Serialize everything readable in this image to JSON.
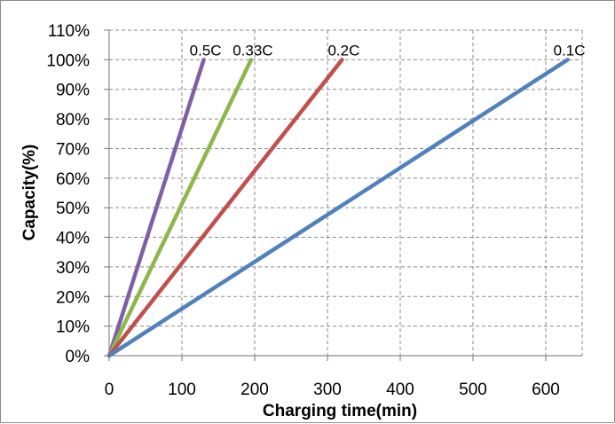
{
  "chart_data": {
    "type": "line",
    "xlabel": "Charging time(min)",
    "ylabel": "Capacity(%)",
    "xlim": [
      0,
      650
    ],
    "ylim": [
      0,
      110
    ],
    "x_ticks": [
      0,
      100,
      200,
      300,
      400,
      500,
      600
    ],
    "y_ticks": [
      0,
      10,
      20,
      30,
      40,
      50,
      60,
      70,
      80,
      90,
      100,
      110
    ],
    "y_tick_suffix": "%",
    "grid": true,
    "series": [
      {
        "name": "0.5C",
        "color": "#7f5fa8",
        "x": [
          0,
          130
        ],
        "y": [
          0,
          100
        ]
      },
      {
        "name": "0.33C",
        "color": "#8cb84b",
        "x": [
          0,
          195
        ],
        "y": [
          0,
          100
        ]
      },
      {
        "name": "0.2C",
        "color": "#c0504d",
        "x": [
          0,
          320
        ],
        "y": [
          0,
          100
        ]
      },
      {
        "name": "0.1C",
        "color": "#4f81bd",
        "x": [
          0,
          630
        ],
        "y": [
          0,
          100
        ]
      }
    ]
  }
}
